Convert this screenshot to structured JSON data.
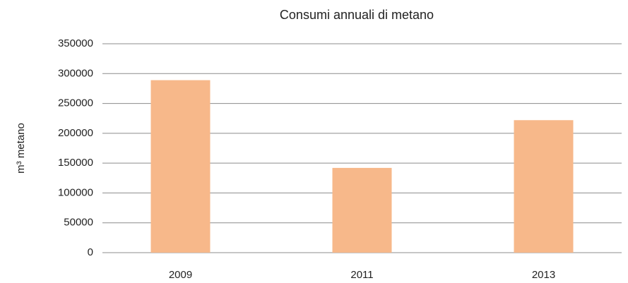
{
  "chart_data": {
    "type": "bar",
    "title": "Consumi annuali di metano",
    "ylabel": "m³ metano",
    "categories": [
      "2009",
      "2011",
      "2013"
    ],
    "values": [
      289000,
      142000,
      222000
    ],
    "color": "#f7b88a",
    "ylim": [
      0,
      350000
    ],
    "yticks": [
      0,
      50000,
      100000,
      150000,
      200000,
      250000,
      300000,
      350000
    ],
    "grid": true
  }
}
